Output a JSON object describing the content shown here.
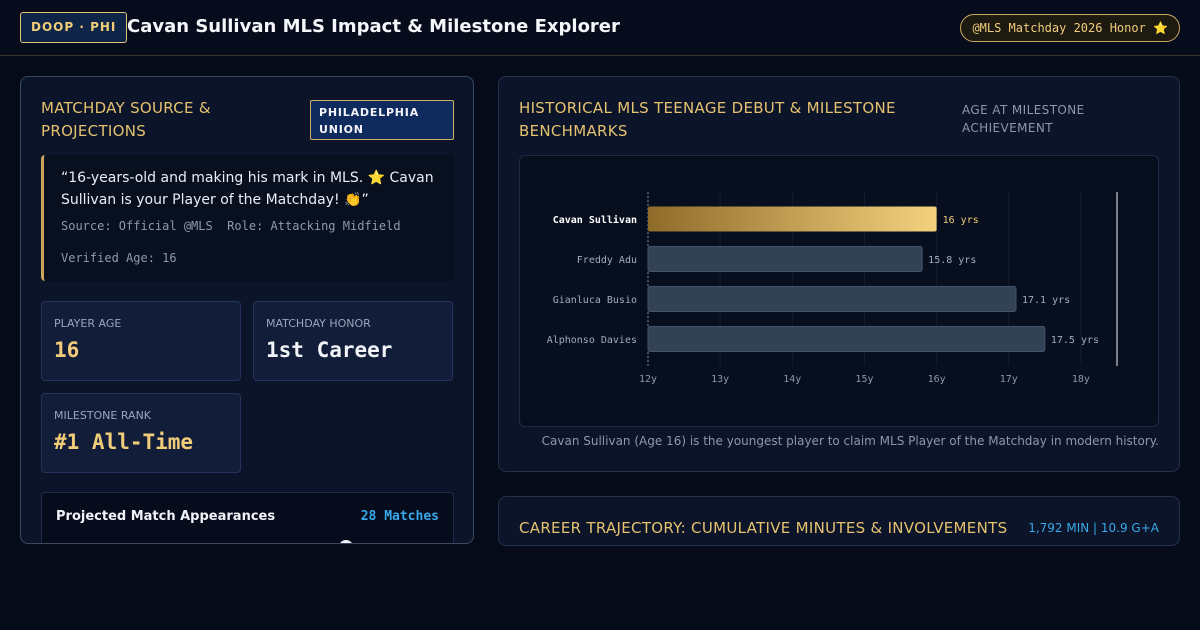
{
  "header": {
    "brand": "DOOP · PHI",
    "title": "Cavan Sullivan MLS Impact & Milestone Explorer",
    "honor_pill": "@MLS Matchday 2026 Honor ⭐"
  },
  "source": {
    "title": "Matchday Source & Projections",
    "team_badge": "PHILADELPHIA UNION",
    "quote": "“16-years-old and making his mark in MLS. ⭐ Cavan Sullivan is your Player of the Matchday! 👏”",
    "source_line": "Source: Official @MLS  Role: Attacking Midfield",
    "verified_age": "Verified Age: 16"
  },
  "stats": {
    "player_age": {
      "label": "Player Age",
      "value": "16"
    },
    "matchday_honor": {
      "label": "Matchday Honor",
      "value": "1st Career"
    },
    "milestone_rank": {
      "label": "Milestone Rank",
      "value": "#1 All-Time"
    }
  },
  "appearances": {
    "label": "Projected Match Appearances",
    "value": "28 Matches"
  },
  "benchmarks": {
    "title": "Historical MLS Teenage Debut & Milestone Benchmarks",
    "subtitle": "Age at Milestone Achievement",
    "caption": "Cavan Sullivan (Age 16) is the youngest player to claim MLS Player of the Matchday in modern history."
  },
  "career": {
    "title": "Career Trajectory: Cumulative Minutes & Involvements",
    "stats": "1,792 MIN | 10.9 G+A"
  },
  "colors": {
    "gold": "#e6c270",
    "accent_blue": "#39a8ea",
    "bar_default": "#334155",
    "highlight_start": "#8f6b2a",
    "highlight_end": "#f2d27e"
  },
  "chart_data": {
    "type": "bar",
    "orientation": "horizontal",
    "categories": [
      "Cavan Sullivan",
      "Freddy Adu",
      "Gianluca Busio",
      "Alphonso Davies"
    ],
    "values": [
      16,
      15.8,
      17.1,
      17.5
    ],
    "value_labels": [
      "16 yrs",
      "15.8 yrs",
      "17.1 yrs",
      "17.5 yrs"
    ],
    "highlight": "Cavan Sullivan",
    "xlim": [
      12,
      18.5
    ],
    "xticks": [
      12,
      13,
      14,
      15,
      16,
      17,
      18
    ],
    "xtick_labels": [
      "12y",
      "13y",
      "14y",
      "15y",
      "16y",
      "17y",
      "18y"
    ],
    "grid": true,
    "legend": "none"
  }
}
